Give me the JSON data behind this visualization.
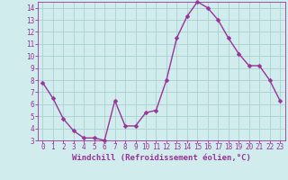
{
  "x": [
    0,
    1,
    2,
    3,
    4,
    5,
    6,
    7,
    8,
    9,
    10,
    11,
    12,
    13,
    14,
    15,
    16,
    17,
    18,
    19,
    20,
    21,
    22,
    23
  ],
  "y": [
    7.8,
    6.5,
    4.8,
    3.8,
    3.2,
    3.2,
    3.0,
    6.3,
    4.2,
    4.2,
    5.3,
    5.5,
    8.0,
    11.5,
    13.3,
    14.5,
    14.0,
    13.0,
    11.5,
    10.2,
    9.2,
    9.2,
    8.0,
    6.3
  ],
  "line_color": "#993399",
  "marker_color": "#993399",
  "bg_color": "#d0ecec",
  "grid_color": "#b0d4d4",
  "xlabel": "Windchill (Refroidissement éolien,°C)",
  "ylim": [
    3,
    14.5
  ],
  "xlim": [
    -0.5,
    23.5
  ],
  "yticks": [
    3,
    4,
    5,
    6,
    7,
    8,
    9,
    10,
    11,
    12,
    13,
    14
  ],
  "xticks": [
    0,
    1,
    2,
    3,
    4,
    5,
    6,
    7,
    8,
    9,
    10,
    11,
    12,
    13,
    14,
    15,
    16,
    17,
    18,
    19,
    20,
    21,
    22,
    23
  ],
  "tick_fontsize": 5.5,
  "xlabel_fontsize": 6.5,
  "line_width": 1.0,
  "marker_size": 2.5
}
